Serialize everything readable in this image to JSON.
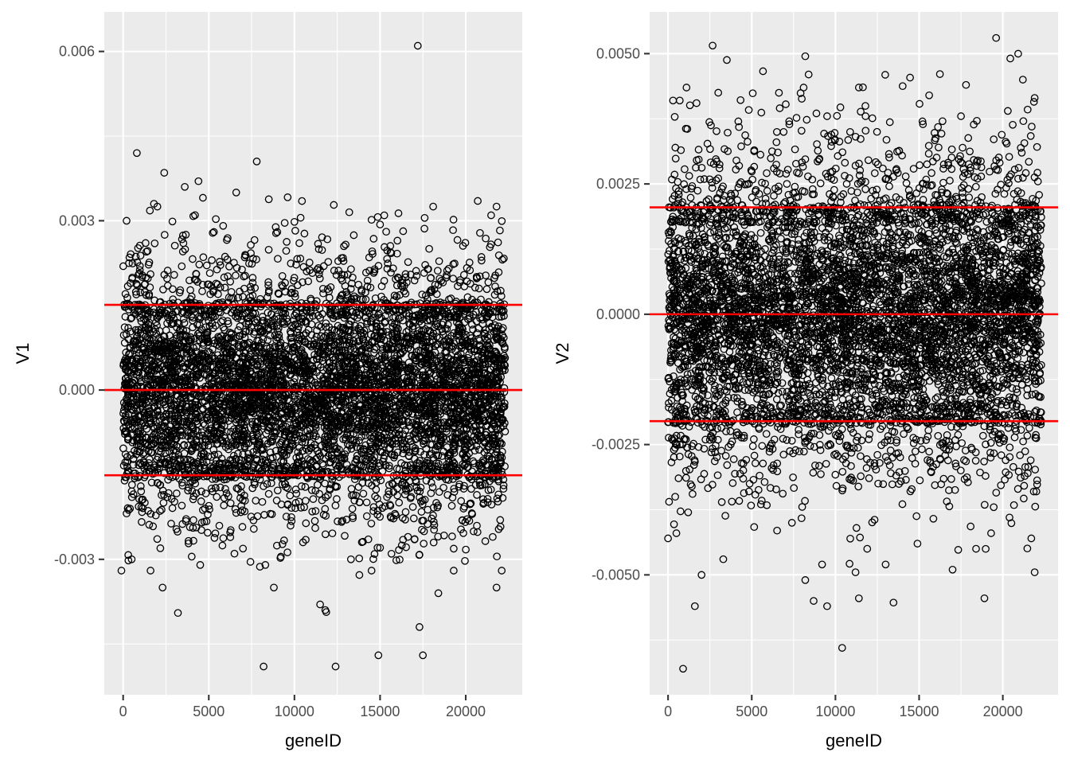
{
  "chart_data": [
    {
      "type": "scatter",
      "xlabel": "geneID",
      "ylabel": "V1",
      "xlim": [
        -1100,
        23300
      ],
      "ylim": [
        -0.0054,
        0.0067
      ],
      "x_ticks": [
        0,
        5000,
        10000,
        15000,
        20000
      ],
      "y_ticks": [
        -0.003,
        0.0,
        0.003,
        0.006
      ],
      "x_tick_labels": [
        "0",
        "5000",
        "10000",
        "15000",
        "20000"
      ],
      "y_tick_labels": [
        "-0.003",
        "0.000",
        "0.003",
        "0.006"
      ],
      "x_max": 22300,
      "grid": true,
      "hlines": [
        0.00151,
        0.0,
        -0.00151
      ],
      "hline_color": "#FF0000",
      "point_color": "#000000",
      "point_shape": "open-circle",
      "core_band": [
        -0.00155,
        0.00155
      ],
      "outliers": [
        {
          "x": 17200,
          "y": 0.0061
        },
        {
          "x": 800,
          "y": 0.0042
        },
        {
          "x": 7800,
          "y": 0.00405
        },
        {
          "x": 2400,
          "y": 0.00385
        },
        {
          "x": 4400,
          "y": 0.0037
        },
        {
          "x": 3600,
          "y": 0.0036
        },
        {
          "x": 6600,
          "y": 0.0035
        },
        {
          "x": 8500,
          "y": 0.00338
        },
        {
          "x": 20700,
          "y": 0.00335
        },
        {
          "x": 12300,
          "y": 0.00328
        },
        {
          "x": 21800,
          "y": 0.00325
        },
        {
          "x": 1800,
          "y": 0.0033
        },
        {
          "x": 2000,
          "y": 0.00325
        },
        {
          "x": 4200,
          "y": 0.0031
        },
        {
          "x": 13200,
          "y": 0.00315
        },
        {
          "x": 18100,
          "y": 0.00325
        },
        {
          "x": 10000,
          "y": 0.00298
        },
        {
          "x": 200,
          "y": 0.003
        },
        {
          "x": 5300,
          "y": 0.0028
        },
        {
          "x": 17600,
          "y": 0.00305
        },
        {
          "x": 9000,
          "y": 0.0028
        },
        {
          "x": -100,
          "y": -0.0032
        },
        {
          "x": 500,
          "y": -0.003
        },
        {
          "x": 3200,
          "y": -0.00395
        },
        {
          "x": 2300,
          "y": -0.0035
        },
        {
          "x": 1600,
          "y": -0.0032
        },
        {
          "x": 4500,
          "y": -0.0031
        },
        {
          "x": 6500,
          "y": -0.0029
        },
        {
          "x": 8300,
          "y": -0.0031
        },
        {
          "x": 8800,
          "y": -0.0035
        },
        {
          "x": 8200,
          "y": -0.0049
        },
        {
          "x": 11500,
          "y": -0.0038
        },
        {
          "x": 11800,
          "y": -0.0039
        },
        {
          "x": 12400,
          "y": -0.0049
        },
        {
          "x": 14900,
          "y": -0.0047
        },
        {
          "x": 14500,
          "y": -0.0032
        },
        {
          "x": 17300,
          "y": -0.0042
        },
        {
          "x": 17500,
          "y": -0.0047
        },
        {
          "x": 18400,
          "y": -0.0036
        },
        {
          "x": 19300,
          "y": -0.0032
        },
        {
          "x": 21800,
          "y": -0.0035
        },
        {
          "x": 22100,
          "y": -0.0032
        },
        {
          "x": 13300,
          "y": -0.003
        },
        {
          "x": 10500,
          "y": -0.0027
        }
      ]
    },
    {
      "type": "scatter",
      "xlabel": "geneID",
      "ylabel": "V2",
      "xlim": [
        -1100,
        23300
      ],
      "ylim": [
        -0.0073,
        0.0058
      ],
      "x_ticks": [
        0,
        5000,
        10000,
        15000,
        20000
      ],
      "y_ticks": [
        -0.005,
        -0.0025,
        0.0,
        0.0025,
        0.005
      ],
      "x_tick_labels": [
        "0",
        "5000",
        "10000",
        "15000",
        "20000"
      ],
      "y_tick_labels": [
        "-0.0050",
        "-0.0025",
        "0.0000",
        "0.0025",
        "0.0050"
      ],
      "x_max": 22300,
      "grid": true,
      "hlines": [
        0.00205,
        0.0,
        -0.00205
      ],
      "hline_color": "#FF0000",
      "point_color": "#000000",
      "point_shape": "open-circle",
      "core_band": [
        -0.0021,
        0.0021
      ],
      "outliers": [
        {
          "x": 19600,
          "y": 0.0053
        },
        {
          "x": 8200,
          "y": 0.00495
        },
        {
          "x": 8400,
          "y": 0.0046
        },
        {
          "x": 21200,
          "y": 0.0045
        },
        {
          "x": 1100,
          "y": 0.00435
        },
        {
          "x": 11400,
          "y": 0.00435
        },
        {
          "x": 17800,
          "y": 0.0044
        },
        {
          "x": 3000,
          "y": 0.00425
        },
        {
          "x": 8100,
          "y": 0.00435
        },
        {
          "x": 15600,
          "y": 0.0042
        },
        {
          "x": 21900,
          "y": 0.00415
        },
        {
          "x": 300,
          "y": 0.0041
        },
        {
          "x": 700,
          "y": 0.0041
        },
        {
          "x": 1700,
          "y": 0.00405
        },
        {
          "x": 20300,
          "y": 0.0039
        },
        {
          "x": 11800,
          "y": 0.0038
        },
        {
          "x": 9500,
          "y": 0.0038
        },
        {
          "x": 17500,
          "y": 0.0038
        },
        {
          "x": 4200,
          "y": 0.0037
        },
        {
          "x": 15200,
          "y": 0.0037
        },
        {
          "x": 900,
          "y": -0.0068
        },
        {
          "x": 10400,
          "y": -0.0064
        },
        {
          "x": 1600,
          "y": -0.0056
        },
        {
          "x": 9500,
          "y": -0.0056
        },
        {
          "x": 8700,
          "y": -0.0055
        },
        {
          "x": 11400,
          "y": -0.00545
        },
        {
          "x": 18900,
          "y": -0.00545
        },
        {
          "x": 2000,
          "y": -0.005
        },
        {
          "x": 11200,
          "y": -0.00495
        },
        {
          "x": 21900,
          "y": -0.00495
        },
        {
          "x": 8200,
          "y": -0.0051
        },
        {
          "x": 9200,
          "y": -0.0048
        },
        {
          "x": 13000,
          "y": -0.0048
        },
        {
          "x": 17000,
          "y": -0.0049
        },
        {
          "x": 3300,
          "y": -0.0047
        },
        {
          "x": 0,
          "y": -0.0043
        },
        {
          "x": 500,
          "y": -0.0042
        },
        {
          "x": 18400,
          "y": -0.0045
        },
        {
          "x": 19300,
          "y": -0.0042
        },
        {
          "x": 20400,
          "y": -0.0039
        },
        {
          "x": 21700,
          "y": -0.0043
        },
        {
          "x": 7400,
          "y": -0.004
        },
        {
          "x": 11900,
          "y": -0.0045
        },
        {
          "x": 14900,
          "y": -0.0044
        },
        {
          "x": 22000,
          "y": -0.0034
        },
        {
          "x": 1200,
          "y": -0.0038
        }
      ]
    }
  ]
}
